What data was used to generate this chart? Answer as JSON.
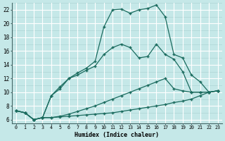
{
  "xlabel": "Humidex (Indice chaleur)",
  "bg_color": "#c5e8e8",
  "line_color": "#1a6b5e",
  "grid_major_color": "#aacfcf",
  "grid_minor_color": "#b8dcdc",
  "white_grid_color": "#ffffff",
  "xlim": [
    -0.5,
    23.5
  ],
  "ylim": [
    5.5,
    23.0
  ],
  "xticks": [
    0,
    1,
    2,
    3,
    4,
    5,
    6,
    7,
    8,
    9,
    10,
    11,
    12,
    13,
    14,
    15,
    16,
    17,
    18,
    19,
    20,
    21,
    22,
    23
  ],
  "yticks": [
    6,
    8,
    10,
    12,
    14,
    16,
    18,
    20,
    22
  ],
  "line1_x": [
    0,
    1,
    2,
    3,
    4,
    5,
    6,
    7,
    8,
    9,
    10,
    11,
    12,
    13,
    14,
    15,
    16,
    17,
    18,
    19,
    20,
    21,
    22,
    23
  ],
  "line1_y": [
    7.3,
    7.0,
    6.0,
    6.3,
    6.3,
    6.4,
    6.5,
    6.6,
    6.7,
    6.8,
    6.9,
    7.0,
    7.2,
    7.4,
    7.6,
    7.8,
    8.0,
    8.2,
    8.5,
    8.7,
    9.0,
    9.5,
    10.0,
    10.2
  ],
  "line2_x": [
    0,
    1,
    2,
    3,
    4,
    5,
    6,
    7,
    8,
    9,
    10,
    11,
    12,
    13,
    14,
    15,
    16,
    17,
    18,
    19,
    20,
    21,
    22,
    23
  ],
  "line2_y": [
    7.3,
    7.0,
    6.0,
    6.3,
    6.3,
    6.5,
    6.8,
    7.2,
    7.6,
    8.0,
    8.5,
    9.0,
    9.5,
    10.0,
    10.5,
    11.0,
    11.5,
    12.0,
    10.5,
    10.2,
    10.0,
    10.0,
    10.0,
    10.2
  ],
  "line3_x": [
    0,
    1,
    2,
    3,
    4,
    5,
    6,
    7,
    8,
    9,
    10,
    11,
    12,
    13,
    14,
    15,
    16,
    17,
    18,
    19,
    20,
    21,
    22,
    23
  ],
  "line3_y": [
    7.3,
    7.0,
    6.0,
    6.3,
    9.5,
    10.5,
    12.0,
    12.5,
    13.2,
    13.8,
    15.5,
    16.5,
    17.0,
    16.5,
    15.0,
    15.2,
    17.0,
    15.5,
    14.8,
    13.0,
    10.0,
    10.0,
    10.0,
    10.2
  ],
  "line4_x": [
    0,
    1,
    2,
    3,
    4,
    5,
    6,
    7,
    8,
    9,
    10,
    11,
    12,
    13,
    14,
    15,
    16,
    17,
    18,
    19,
    20,
    21,
    22,
    23
  ],
  "line4_y": [
    7.3,
    7.0,
    6.0,
    6.3,
    9.5,
    10.8,
    12.0,
    12.8,
    13.5,
    14.5,
    19.5,
    22.0,
    22.1,
    21.5,
    22.0,
    22.2,
    22.7,
    21.0,
    15.5,
    15.0,
    12.5,
    11.5,
    10.0,
    10.2
  ]
}
